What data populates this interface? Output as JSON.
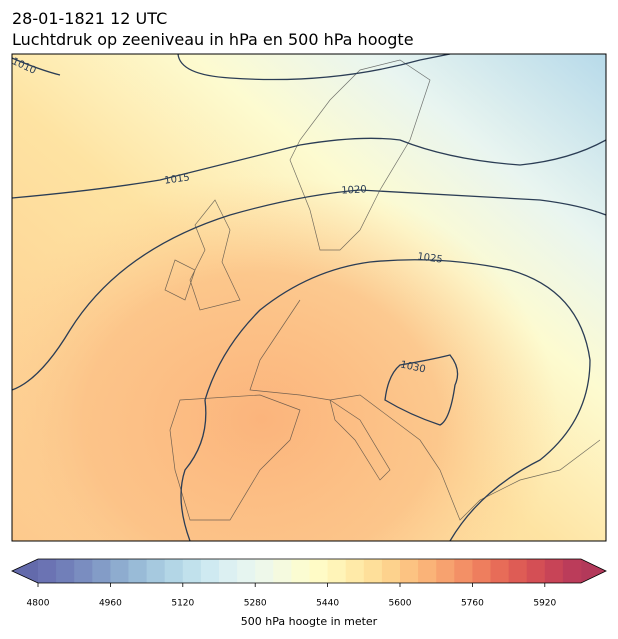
{
  "title": "28-01-1821 12 UTC",
  "subtitle": "Luchtdruk op zeeniveau in hPa en 500 hPa hoogte",
  "isobar_labels": [
    "1010",
    "1015",
    "1020",
    "1025",
    "1030"
  ],
  "colorbar": {
    "label": "500 hPa hoogte in meter",
    "lim": [
      4800,
      6000
    ],
    "ticks": [
      4800,
      4960,
      5120,
      5280,
      5440,
      5600,
      5760,
      5920
    ],
    "under": "#636aab",
    "over": "#b3395a",
    "colors": [
      "#6b73b3",
      "#717fb9",
      "#7a8dc0",
      "#839cc7",
      "#8eaccf",
      "#99bbd7",
      "#a6c9df",
      "#b3d6e6",
      "#c1e1ec",
      "#cfeaf1",
      "#dcf0f2",
      "#e6f5f0",
      "#eef8ea",
      "#f5fadf",
      "#fbfcd2",
      "#fffbc6",
      "#fff4b8",
      "#ffeaa8",
      "#fedf9a",
      "#fdd28d",
      "#fcc382",
      "#fab378",
      "#f7a26f",
      "#f39066",
      "#ee7e5e",
      "#e76c58",
      "#de5c55",
      "#d44f55",
      "#c84457",
      "#bb3c5a"
    ]
  }
}
